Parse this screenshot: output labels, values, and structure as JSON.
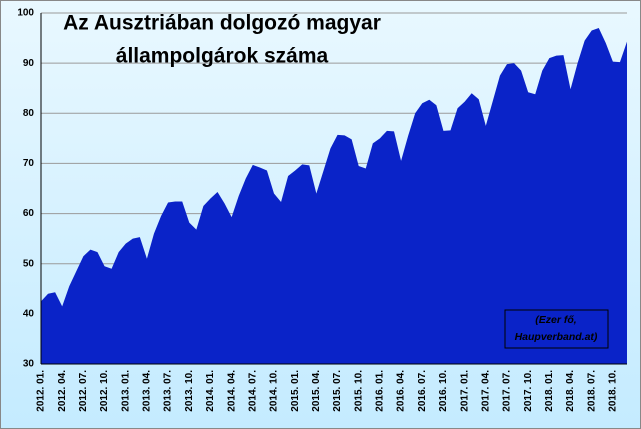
{
  "chart_data": {
    "type": "area",
    "title": [
      "Az Ausztriában dolgozó magyar",
      "állampolgárok száma"
    ],
    "annotation": [
      "(Ezer fő,",
      "Haupverband.at)"
    ],
    "categories": [
      "2012. 01.",
      null,
      null,
      "2012. 04.",
      null,
      null,
      "2012. 07.",
      null,
      null,
      "2012. 10.",
      null,
      null,
      "2013. 01.",
      null,
      null,
      "2013. 04.",
      null,
      null,
      "2013. 07.",
      null,
      null,
      "2013. 10.",
      null,
      null,
      "2014. 01.",
      null,
      null,
      "2014. 04.",
      null,
      null,
      "2014. 07.",
      null,
      null,
      "2014. 10.",
      null,
      null,
      "2015. 01.",
      null,
      null,
      "2015. 04.",
      null,
      null,
      "2015. 07.",
      null,
      null,
      "2015. 10.",
      null,
      null,
      "2016. 01.",
      null,
      null,
      "2016. 04.",
      null,
      null,
      "2016. 07.",
      null,
      null,
      "2016. 10.",
      null,
      null,
      "2017. 01.",
      null,
      null,
      "2017. 04.",
      null,
      null,
      "2017. 07.",
      null,
      null,
      "2017. 10.",
      null,
      null,
      "2018. 01.",
      null,
      null,
      "2018. 04.",
      null,
      null,
      "2018. 07.",
      null,
      null,
      "2018. 10.",
      null,
      null
    ],
    "values": [
      42.5,
      44,
      44.3,
      41.5,
      45.5,
      48.5,
      51.5,
      52.8,
      52.3,
      49.5,
      49,
      52.3,
      54,
      55,
      55.3,
      51,
      56,
      59.5,
      62.2,
      62.4,
      62.4,
      58.2,
      56.8,
      61.5,
      63,
      64.3,
      62,
      59.3,
      63.5,
      67,
      69.7,
      69.2,
      68.6,
      64,
      62.3,
      67.5,
      68.6,
      69.8,
      69.6,
      64,
      68.5,
      73,
      75.7,
      75.6,
      74.8,
      69.5,
      69,
      74,
      75,
      76.5,
      76.4,
      70.5,
      75.5,
      80,
      82,
      82.7,
      81.6,
      76.5,
      76.6,
      81,
      82.3,
      84,
      82.8,
      77.5,
      82.5,
      87.5,
      89.8,
      90,
      88.5,
      84.2,
      83.8,
      88.5,
      91,
      91.5,
      91.6,
      84.8,
      90,
      94.5,
      96.5,
      97,
      94,
      90.3,
      90.2,
      94.3
    ],
    "color": "#0a23c8",
    "ylim": [
      30,
      100
    ],
    "yticks": [
      30,
      40,
      50,
      60,
      70,
      80,
      90,
      100
    ],
    "grid": true
  }
}
